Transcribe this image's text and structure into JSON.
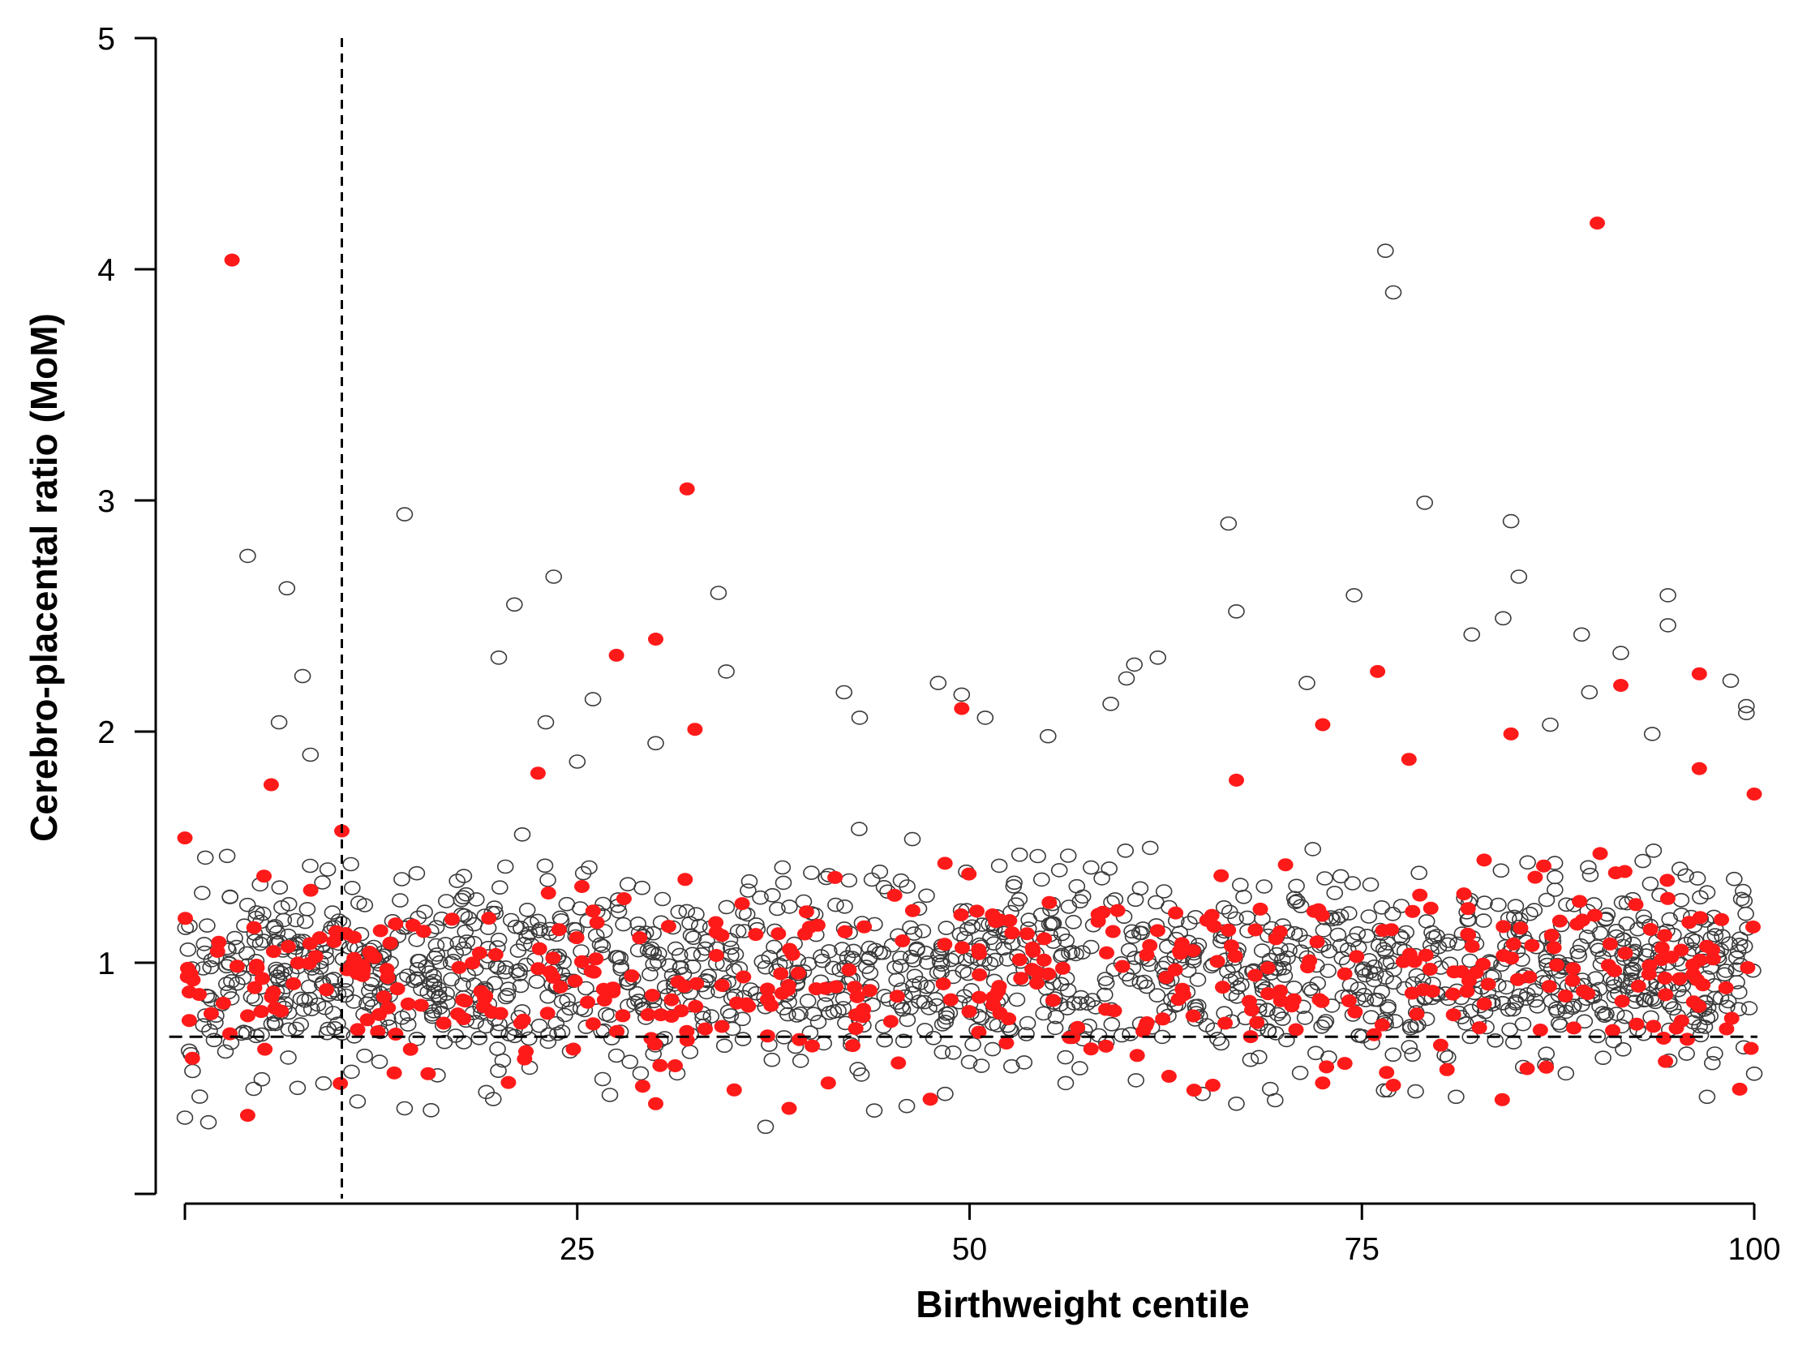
{
  "chart_data": {
    "type": "scatter",
    "title": "",
    "xlabel": "Birthweight centile",
    "ylabel": "Cerebro-placental ratio (MoM)",
    "xlim": [
      0,
      100
    ],
    "ylim": [
      0,
      5
    ],
    "x_ticks": [
      {
        "value": 25,
        "label": "25"
      },
      {
        "value": 50,
        "label": "50"
      },
      {
        "value": 75,
        "label": "75"
      },
      {
        "value": 100,
        "label": "100"
      }
    ],
    "y_ticks": [
      {
        "value": 1,
        "label": "1"
      },
      {
        "value": 2,
        "label": "2"
      },
      {
        "value": 3,
        "label": "3"
      },
      {
        "value": 4,
        "label": "4"
      },
      {
        "value": 5,
        "label": "5"
      }
    ],
    "reference_lines": [
      {
        "orientation": "vertical",
        "value": 10,
        "style": "dashed"
      },
      {
        "orientation": "horizontal",
        "value": 0.68,
        "style": "dashed"
      }
    ],
    "series": [
      {
        "name": "open circles",
        "marker": "open-circle",
        "color": "#000000",
        "bulk": {
          "count": 1500,
          "x_range": [
            0,
            100
          ],
          "y_center": 0.97,
          "y_spread": 0.2,
          "y_min": 0.3
        },
        "points": [
          [
            14,
            2.94
          ],
          [
            4,
            2.76
          ],
          [
            6.5,
            2.62
          ],
          [
            7.5,
            2.24
          ],
          [
            6,
            2.04
          ],
          [
            8,
            1.9
          ],
          [
            20,
            2.32
          ],
          [
            21,
            2.55
          ],
          [
            23.5,
            2.67
          ],
          [
            26,
            2.14
          ],
          [
            25,
            1.87
          ],
          [
            23,
            2.04
          ],
          [
            30,
            1.95
          ],
          [
            34,
            2.6
          ],
          [
            34.5,
            2.26
          ],
          [
            42,
            2.17
          ],
          [
            43,
            2.06
          ],
          [
            48,
            2.21
          ],
          [
            49.5,
            2.16
          ],
          [
            51,
            2.06
          ],
          [
            55,
            1.98
          ],
          [
            59,
            2.12
          ],
          [
            60.5,
            2.29
          ],
          [
            62,
            2.32
          ],
          [
            60,
            2.23
          ],
          [
            66.5,
            2.9
          ],
          [
            67,
            2.52
          ],
          [
            71.5,
            2.21
          ],
          [
            74.5,
            2.59
          ],
          [
            76.5,
            4.08
          ],
          [
            77,
            3.9
          ],
          [
            79,
            2.99
          ],
          [
            82,
            2.42
          ],
          [
            84.5,
            2.91
          ],
          [
            85,
            2.67
          ],
          [
            84,
            2.49
          ],
          [
            87,
            2.03
          ],
          [
            89,
            2.42
          ],
          [
            89.5,
            2.17
          ],
          [
            91.5,
            2.34
          ],
          [
            93.5,
            1.99
          ],
          [
            94.5,
            2.59
          ],
          [
            94.5,
            2.46
          ],
          [
            98.5,
            2.22
          ],
          [
            99.5,
            2.11
          ],
          [
            99.5,
            2.08
          ],
          [
            0,
            0.33
          ],
          [
            1.5,
            0.31
          ],
          [
            11,
            0.4
          ],
          [
            14,
            0.37
          ],
          [
            37,
            0.29
          ],
          [
            46,
            0.38
          ],
          [
            67,
            0.39
          ],
          [
            81,
            0.42
          ],
          [
            97,
            0.42
          ],
          [
            100,
            0.52
          ]
        ]
      },
      {
        "name": "filled red circles",
        "marker": "filled-circle",
        "color": "#ff1a1a",
        "bulk": {
          "count": 430,
          "x_range": [
            0,
            100
          ],
          "y_center": 0.95,
          "y_spread": 0.2,
          "y_min": 0.4
        },
        "points": [
          [
            3,
            4.04
          ],
          [
            90,
            4.2
          ],
          [
            32,
            3.05
          ],
          [
            30,
            2.4
          ],
          [
            27.5,
            2.33
          ],
          [
            32.5,
            2.01
          ],
          [
            22.5,
            1.82
          ],
          [
            5.5,
            1.77
          ],
          [
            10,
            1.57
          ],
          [
            0,
            1.54
          ],
          [
            49.5,
            2.1
          ],
          [
            76,
            2.26
          ],
          [
            91.5,
            2.2
          ],
          [
            96.5,
            2.25
          ],
          [
            96.5,
            1.84
          ],
          [
            72.5,
            2.03
          ],
          [
            84.5,
            1.99
          ],
          [
            78,
            1.88
          ],
          [
            67,
            1.79
          ],
          [
            100,
            1.73
          ],
          [
            4,
            0.34
          ],
          [
            30,
            0.39
          ],
          [
            38.5,
            0.37
          ],
          [
            47.5,
            0.41
          ],
          [
            35,
            0.45
          ],
          [
            65.5,
            0.47
          ],
          [
            72.5,
            0.48
          ],
          [
            77,
            0.47
          ],
          [
            41,
            0.48
          ],
          [
            15.5,
            0.52
          ]
        ]
      }
    ]
  }
}
